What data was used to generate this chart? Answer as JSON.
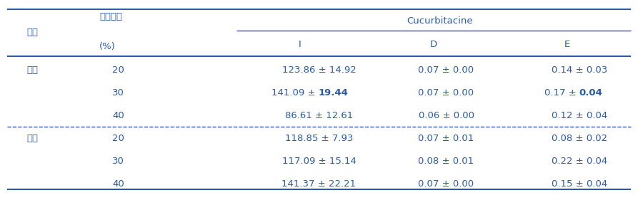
{
  "title_col1": "기온",
  "title_col2": "토양수분\n(%)",
  "cucurbitacine_header": "Cucurbitacine",
  "sub_headers": [
    "I",
    "D",
    "E"
  ],
  "rows": [
    {
      "group": "대조",
      "moisture": "20",
      "I": "123.86 ± 14.92",
      "I_bold_sd": false,
      "D": "0.07 ± 0.00",
      "D_bold_sd": false,
      "E": "0.14 ± 0.03",
      "E_bold_sd": false
    },
    {
      "group": "",
      "moisture": "30",
      "I": "141.09 ± 19.44",
      "I_bold_sd": true,
      "D": "0.07 ± 0.00",
      "D_bold_sd": false,
      "E": "0.17 ± 0.04",
      "E_bold_sd": true
    },
    {
      "group": "",
      "moisture": "40",
      "I": "86.61 ± 12.61",
      "I_bold_sd": false,
      "D": "0.06 ± 0.00",
      "D_bold_sd": false,
      "E": "0.12 ± 0.04",
      "E_bold_sd": false
    },
    {
      "group": "고온",
      "moisture": "20",
      "I": "118.85 ± 7.93",
      "I_bold_sd": false,
      "D": "0.07 ± 0.01",
      "D_bold_sd": false,
      "E": "0.08 ± 0.02",
      "E_bold_sd": false
    },
    {
      "group": "",
      "moisture": "30",
      "I": "117.09 ± 15.14",
      "I_bold_sd": false,
      "D": "0.08 ± 0.01",
      "D_bold_sd": false,
      "E": "0.22 ± 0.04",
      "E_bold_sd": false
    },
    {
      "group": "",
      "moisture": "40",
      "I": "141.37 ± 22.21",
      "I_bold_sd": false,
      "D": "0.07 ± 0.00",
      "D_bold_sd": false,
      "E": "0.15 ± 0.04",
      "E_bold_sd": false
    }
  ],
  "text_color": "#2B5BA8",
  "line_color": "#2B5BA8",
  "bg_color": "#FFFFFF",
  "font_size": 9.5,
  "header_font_size": 9.5
}
